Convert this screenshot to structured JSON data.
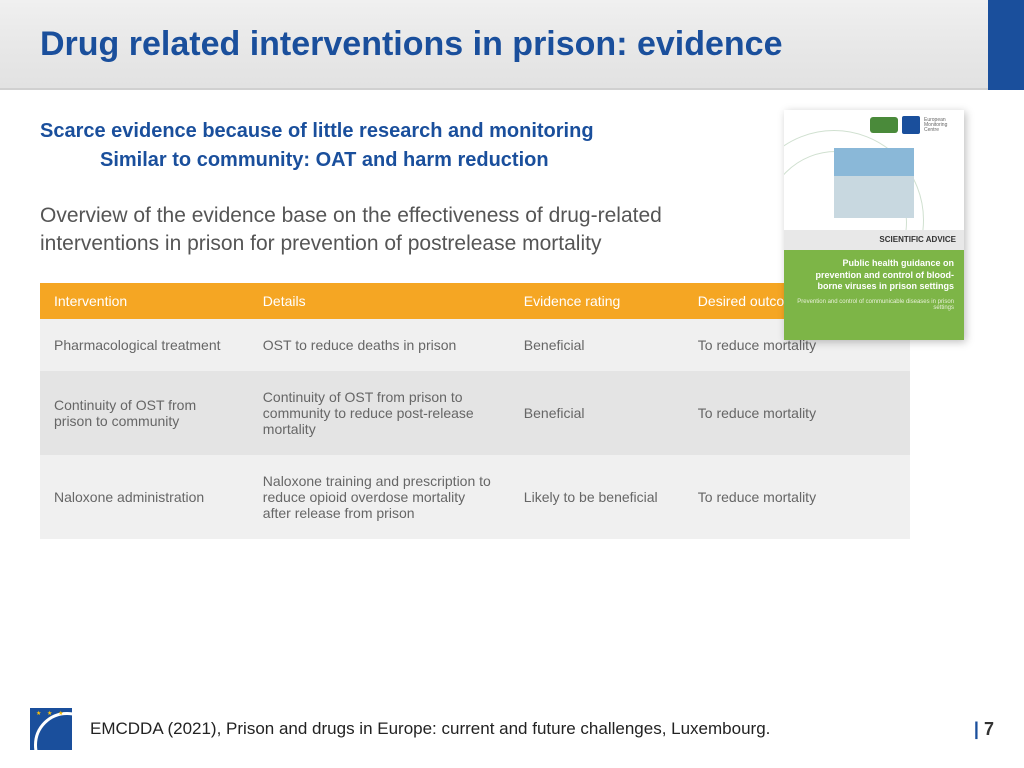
{
  "title": "Drug related interventions in prison: evidence",
  "highlight1": "Scarce evidence because of little research and monitoring",
  "highlight2": "Similar to community: OAT and harm reduction",
  "overview": "Overview of the evidence base on the effectiveness of drug-related interventions in prison for prevention of postrelease mortality",
  "table": {
    "headers": [
      "Intervention",
      "Details",
      "Evidence rating",
      "Desired outcomes"
    ],
    "rows": [
      [
        "Pharmacological treatment",
        "OST to reduce deaths in prison",
        "Beneficial",
        "To reduce mortality"
      ],
      [
        "Continuity of OST from prison to community",
        "Continuity of OST from prison to community to reduce post-release mortality",
        "Beneficial",
        "To reduce mortality"
      ],
      [
        "Naloxone administration",
        "Naloxone training and prescription to reduce opioid overdose mortality after release from prison",
        "Likely to be beneficial",
        "To reduce mortality"
      ]
    ]
  },
  "publication": {
    "badge": "SCIENTIFIC ADVICE",
    "title": "Public health guidance on prevention and control of blood-borne viruses in prison settings",
    "subtitle": "Prevention and control of communicable diseases in prison settings"
  },
  "footer": "EMCDDA (2021), Prison and drugs in Europe: current and future challenges, Luxembourg.",
  "pageNumber": "7",
  "colors": {
    "primary": "#1a4f9c",
    "tableHeader": "#f5a623",
    "pubGreen": "#7db547"
  }
}
